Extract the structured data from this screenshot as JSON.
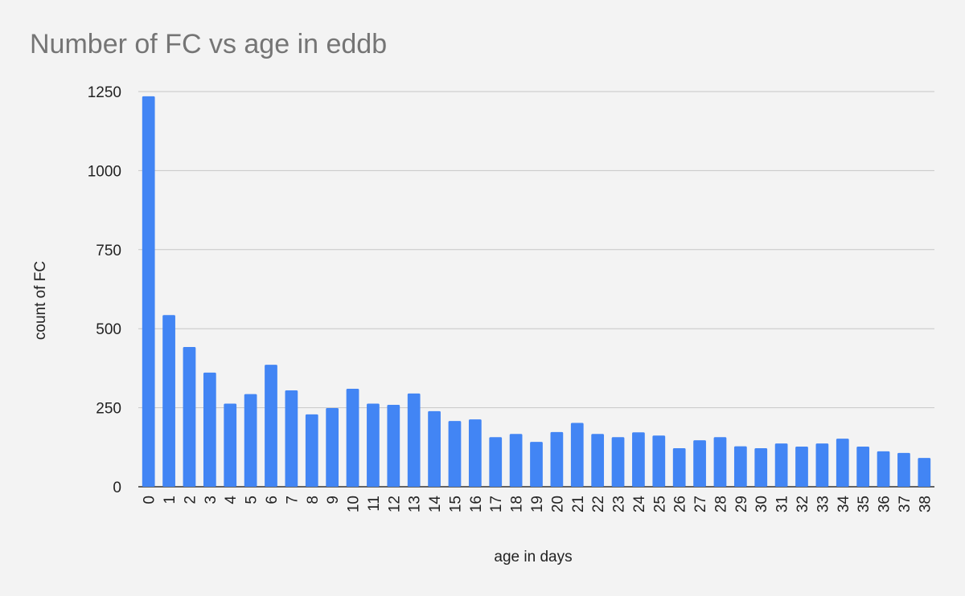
{
  "chart_data": {
    "type": "bar",
    "title": "Number of FC vs age in eddb",
    "xlabel": "age in days",
    "ylabel": "count of FC",
    "ylim": [
      0,
      1250
    ],
    "yticks": [
      "0",
      "250",
      "500",
      "750",
      "1000",
      "1250"
    ],
    "grid": true,
    "legend": "none",
    "bar_color": "#4285f4",
    "categories": [
      "0",
      "1",
      "2",
      "3",
      "4",
      "5",
      "6",
      "7",
      "8",
      "9",
      "10",
      "11",
      "12",
      "13",
      "14",
      "15",
      "16",
      "17",
      "18",
      "19",
      "20",
      "21",
      "22",
      "23",
      "24",
      "25",
      "26",
      "27",
      "28",
      "29",
      "30",
      "31",
      "32",
      "33",
      "34",
      "35",
      "36",
      "37",
      "38"
    ],
    "values": [
      1235,
      543,
      442,
      361,
      263,
      293,
      386,
      305,
      229,
      249,
      310,
      263,
      259,
      295,
      239,
      208,
      213,
      157,
      167,
      142,
      173,
      202,
      167,
      157,
      172,
      162,
      122,
      147,
      157,
      128,
      122,
      137,
      127,
      137,
      152,
      127,
      112,
      107,
      91
    ]
  }
}
